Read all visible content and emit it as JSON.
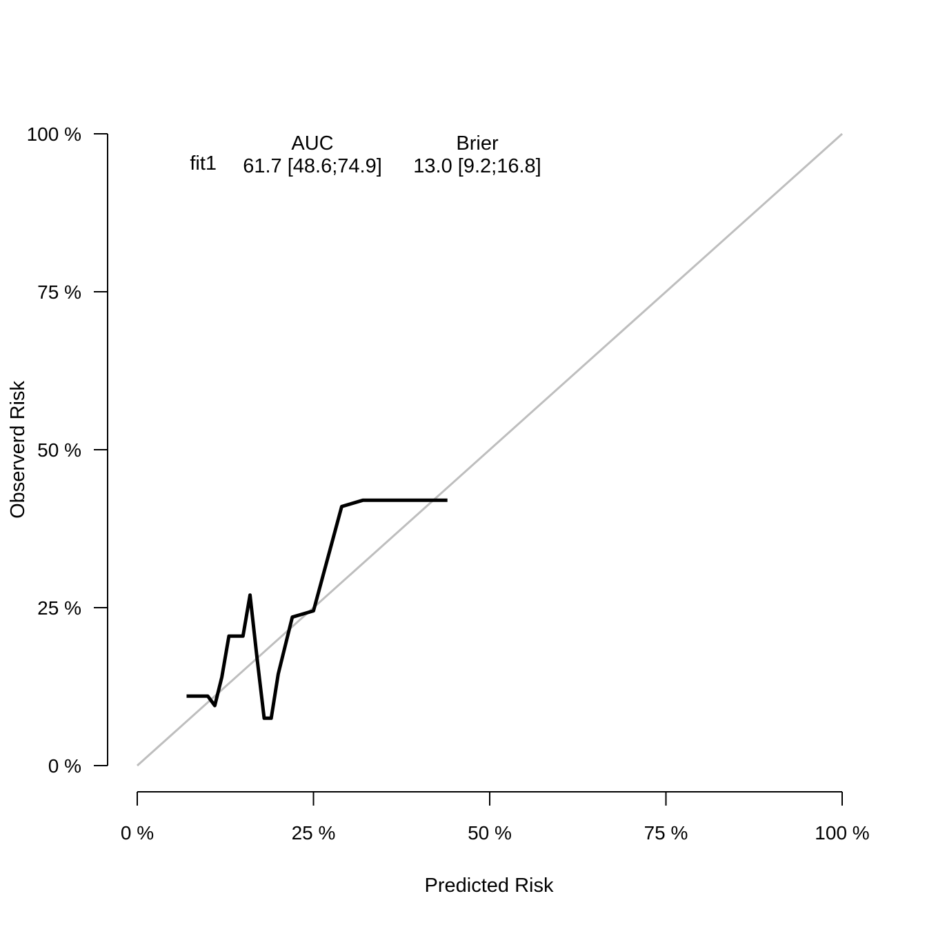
{
  "chart_data": {
    "type": "line",
    "xlabel": "Predicted Risk",
    "ylabel": "Observerd Risk",
    "xlim": [
      0,
      100
    ],
    "ylim": [
      0,
      100
    ],
    "x_ticks": [
      "0 %",
      "25 %",
      "50 %",
      "75 %",
      "100 %"
    ],
    "y_ticks": [
      "0 %",
      "25 %",
      "50 %",
      "75 %",
      "100 %"
    ],
    "grid": false,
    "reference_line": {
      "x": [
        0,
        100
      ],
      "y": [
        0,
        100
      ],
      "color": "#bebebe"
    },
    "series": [
      {
        "color": "#000000",
        "x": [
          7,
          10,
          11,
          12,
          13,
          15,
          16,
          17,
          18,
          19,
          20,
          22,
          25,
          29,
          32,
          44
        ],
        "y": [
          11,
          11,
          9.5,
          14,
          20.5,
          20.5,
          27,
          17,
          7.5,
          7.5,
          14.5,
          23.5,
          24.5,
          41,
          42,
          42
        ]
      }
    ],
    "legend": {
      "header_auc": "AUC",
      "header_brier": "Brier",
      "rows": [
        {
          "name": "fit1",
          "auc": "61.7 [48.6;74.9]",
          "brier": "13.0 [9.2;16.8]"
        }
      ]
    }
  }
}
